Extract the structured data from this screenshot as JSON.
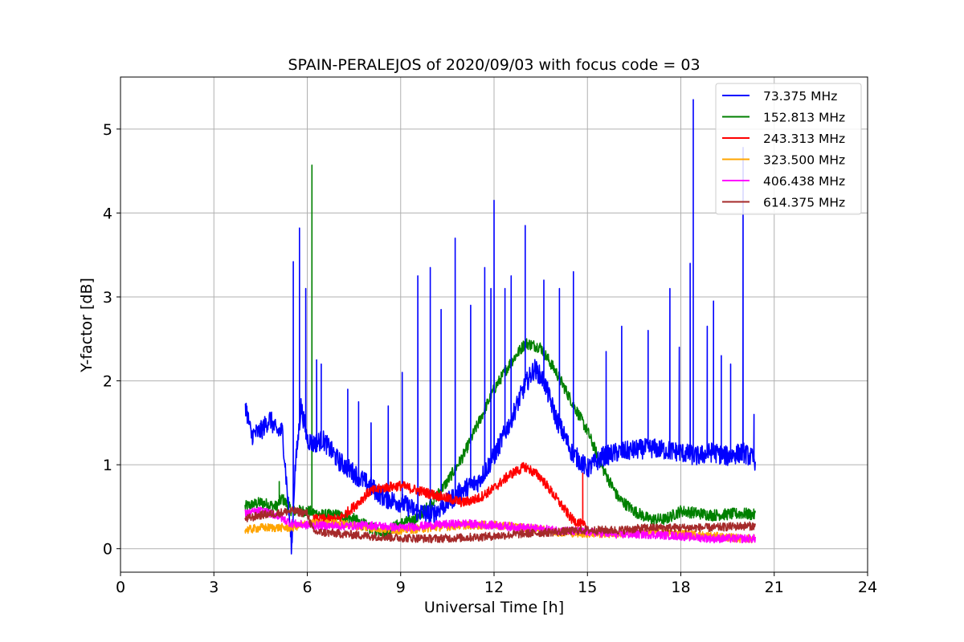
{
  "chart_data": {
    "type": "line",
    "title": "SPAIN-PERALEJOS of 2020/09/03 with focus code = 03",
    "xlabel": "Universal Time [h]",
    "ylabel": "Y-factor [dB]",
    "xlim": [
      0,
      24
    ],
    "ylim": [
      -0.28,
      5.62
    ],
    "xticks": [
      0,
      3,
      6,
      9,
      12,
      15,
      18,
      21,
      24
    ],
    "yticks": [
      0,
      1,
      2,
      3,
      4,
      5
    ],
    "grid": true,
    "legend_position": "top-right",
    "series": [
      {
        "name": "  73.375 MHz",
        "color": "#0000ff",
        "x": [
          4.0,
          4.2,
          4.5,
          4.8,
          5.0,
          5.2,
          5.3,
          5.5,
          5.6,
          5.8,
          6.0,
          6.2,
          6.5,
          7.0,
          7.5,
          8.0,
          8.5,
          9.0,
          9.5,
          10.0,
          10.5,
          11.0,
          11.5,
          12.0,
          12.5,
          13.0,
          13.3,
          13.6,
          14.0,
          14.5,
          15.0,
          15.5,
          16.0,
          17.0,
          18.0,
          18.5,
          19.0,
          19.5,
          20.0,
          20.4
        ],
        "y": [
          1.75,
          1.35,
          1.4,
          1.55,
          1.4,
          1.4,
          0.95,
          0.0,
          0.9,
          1.7,
          1.3,
          1.25,
          1.3,
          1.05,
          0.9,
          0.75,
          0.6,
          0.55,
          0.45,
          0.4,
          0.55,
          0.7,
          0.8,
          1.1,
          1.5,
          1.95,
          2.15,
          2.0,
          1.55,
          1.15,
          0.95,
          1.1,
          1.15,
          1.2,
          1.15,
          1.1,
          1.15,
          1.1,
          1.15,
          1.05
        ],
        "spikes": [
          [
            5.55,
            3.42
          ],
          [
            5.75,
            3.82
          ],
          [
            5.95,
            3.1
          ],
          [
            6.3,
            2.25
          ],
          [
            6.45,
            2.2
          ],
          [
            7.3,
            1.9
          ],
          [
            7.65,
            1.75
          ],
          [
            8.05,
            1.5
          ],
          [
            8.6,
            1.7
          ],
          [
            9.05,
            2.1
          ],
          [
            9.55,
            3.25
          ],
          [
            9.95,
            3.35
          ],
          [
            10.3,
            2.85
          ],
          [
            10.75,
            3.7
          ],
          [
            11.25,
            2.9
          ],
          [
            11.7,
            3.35
          ],
          [
            11.9,
            3.1
          ],
          [
            12.0,
            4.15
          ],
          [
            12.35,
            3.1
          ],
          [
            12.55,
            3.25
          ],
          [
            13.0,
            3.85
          ],
          [
            13.6,
            3.2
          ],
          [
            14.1,
            3.1
          ],
          [
            14.55,
            3.3
          ],
          [
            15.6,
            2.35
          ],
          [
            16.1,
            2.65
          ],
          [
            16.95,
            2.6
          ],
          [
            17.65,
            3.1
          ],
          [
            17.95,
            2.4
          ],
          [
            18.3,
            3.4
          ],
          [
            18.4,
            5.35
          ],
          [
            18.85,
            2.65
          ],
          [
            19.05,
            2.95
          ],
          [
            19.3,
            2.3
          ],
          [
            19.6,
            2.2
          ],
          [
            20.0,
            4.78
          ],
          [
            20.35,
            1.6
          ]
        ]
      },
      {
        "name": "152.813 MHz",
        "color": "#008000",
        "x": [
          4.0,
          4.5,
          5.0,
          5.2,
          5.5,
          6.0,
          6.5,
          7.0,
          7.5,
          8.0,
          8.5,
          9.0,
          9.5,
          10.0,
          10.5,
          11.0,
          11.5,
          12.0,
          12.5,
          13.0,
          13.5,
          14.0,
          14.5,
          15.0,
          15.5,
          16.0,
          16.5,
          17.0,
          17.5,
          18.0,
          19.0,
          20.0,
          20.4
        ],
        "y": [
          0.5,
          0.55,
          0.5,
          0.6,
          0.45,
          0.45,
          0.4,
          0.4,
          0.35,
          0.25,
          0.2,
          0.3,
          0.35,
          0.55,
          0.8,
          1.1,
          1.5,
          1.9,
          2.2,
          2.45,
          2.4,
          2.1,
          1.75,
          1.4,
          0.95,
          0.6,
          0.45,
          0.35,
          0.35,
          0.45,
          0.4,
          0.42,
          0.4
        ],
        "spikes": [
          [
            6.15,
            4.57
          ],
          [
            5.1,
            0.8
          ]
        ]
      },
      {
        "name": "243.313 MHz",
        "color": "#ff0000",
        "x": [
          6.2,
          7.0,
          7.5,
          8.0,
          8.5,
          9.0,
          9.5,
          10.0,
          10.5,
          11.0,
          11.5,
          12.0,
          12.5,
          13.0,
          13.5,
          14.0,
          14.5,
          15.0
        ],
        "y": [
          0.35,
          0.35,
          0.5,
          0.68,
          0.73,
          0.75,
          0.7,
          0.65,
          0.6,
          0.55,
          0.6,
          0.72,
          0.88,
          0.98,
          0.85,
          0.6,
          0.35,
          0.25
        ],
        "spikes": [
          [
            6.15,
            0.8
          ],
          [
            14.85,
            0.9
          ],
          [
            16.4,
            0.9
          ]
        ]
      },
      {
        "name": "323.500 MHz",
        "color": "#ffa500",
        "x": [
          4.0,
          4.5,
          5.0,
          5.5,
          6.0,
          7.0,
          8.0,
          9.0,
          10.0,
          11.0,
          12.0,
          13.0,
          14.0,
          15.0,
          16.0,
          17.0,
          18.0,
          19.0,
          20.0,
          20.4
        ],
        "y": [
          0.22,
          0.25,
          0.25,
          0.25,
          0.3,
          0.3,
          0.25,
          0.22,
          0.25,
          0.28,
          0.28,
          0.25,
          0.2,
          0.18,
          0.18,
          0.2,
          0.18,
          0.15,
          0.12,
          0.12
        ],
        "spikes": []
      },
      {
        "name": "406.438 MHz",
        "color": "#ff00ff",
        "x": [
          4.0,
          4.5,
          5.0,
          5.5,
          6.0,
          7.0,
          8.0,
          9.0,
          10.0,
          11.0,
          12.0,
          13.0,
          14.0,
          15.0,
          16.0,
          17.0,
          18.0,
          19.0,
          20.0,
          20.4
        ],
        "y": [
          0.42,
          0.45,
          0.4,
          0.3,
          0.28,
          0.27,
          0.28,
          0.25,
          0.28,
          0.3,
          0.28,
          0.25,
          0.22,
          0.2,
          0.17,
          0.17,
          0.15,
          0.12,
          0.12,
          0.12
        ],
        "spikes": []
      },
      {
        "name": "614.375 MHz",
        "color": "#a52a2a",
        "x": [
          4.0,
          4.5,
          5.0,
          5.5,
          6.0,
          6.2,
          7.0,
          8.0,
          9.0,
          10.0,
          11.0,
          12.0,
          13.0,
          14.0,
          15.0,
          16.0,
          17.0,
          18.0,
          19.0,
          20.0,
          20.4
        ],
        "y": [
          0.35,
          0.4,
          0.42,
          0.45,
          0.42,
          0.2,
          0.18,
          0.15,
          0.13,
          0.12,
          0.13,
          0.15,
          0.18,
          0.2,
          0.22,
          0.22,
          0.25,
          0.25,
          0.25,
          0.27,
          0.27
        ],
        "spikes": []
      }
    ]
  }
}
